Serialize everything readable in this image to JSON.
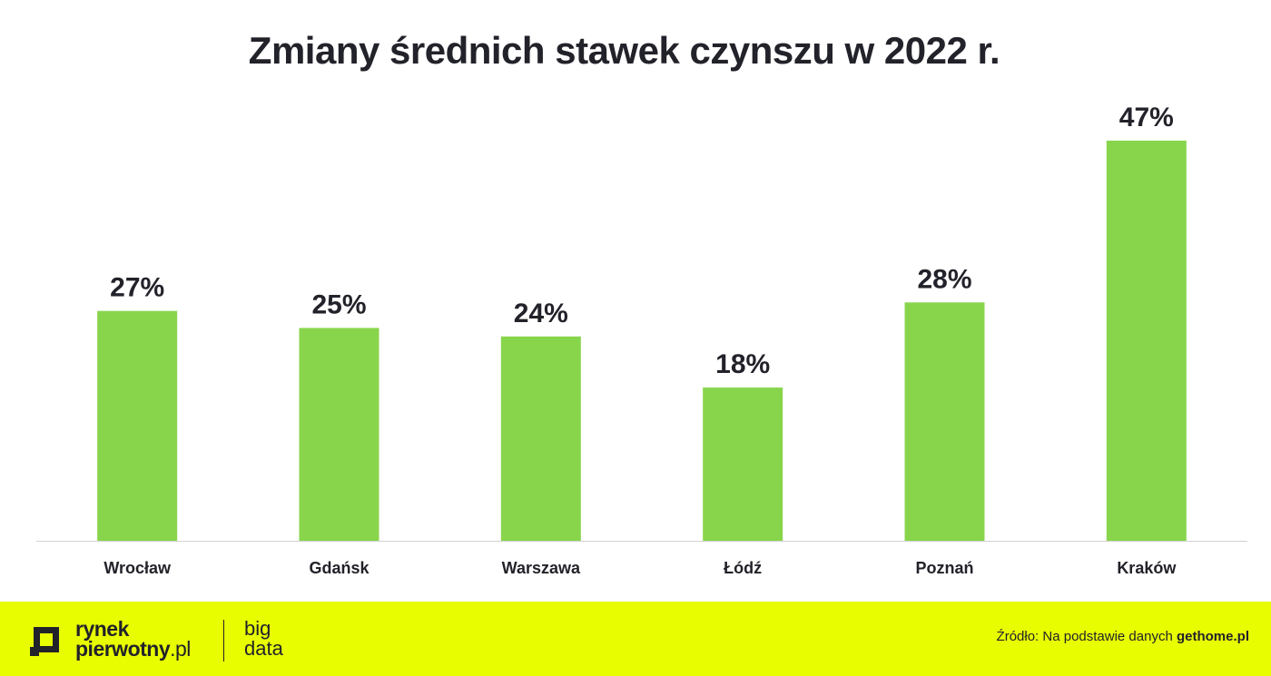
{
  "colors": {
    "bar": "#88d54c",
    "axis": "#d3d3d3",
    "footer": "#e8fe00",
    "text": "#22222a"
  },
  "chart_data": {
    "type": "bar",
    "title": "Zmiany średnich stawek czynszu w 2022 r.",
    "categories": [
      "Wrocław",
      "Gdańsk",
      "Warszawa",
      "Łódź",
      "Poznań",
      "Kraków"
    ],
    "values": [
      27,
      25,
      24,
      18,
      28,
      47
    ],
    "value_labels": [
      "27%",
      "25%",
      "24%",
      "18%",
      "28%",
      "47%"
    ],
    "unit": "%",
    "xlabel": "",
    "ylabel": "",
    "ylim": [
      0,
      47
    ],
    "grid": false,
    "legend": "none"
  },
  "footer": {
    "logo": {
      "line1": "rynek",
      "line2_main": "pierwotny",
      "line2_suffix": ".pl",
      "sub1": "big",
      "sub2": "data"
    },
    "source": {
      "prefix": "Źródło: Na podstawie danych ",
      "brand": "gethome.pl"
    }
  }
}
